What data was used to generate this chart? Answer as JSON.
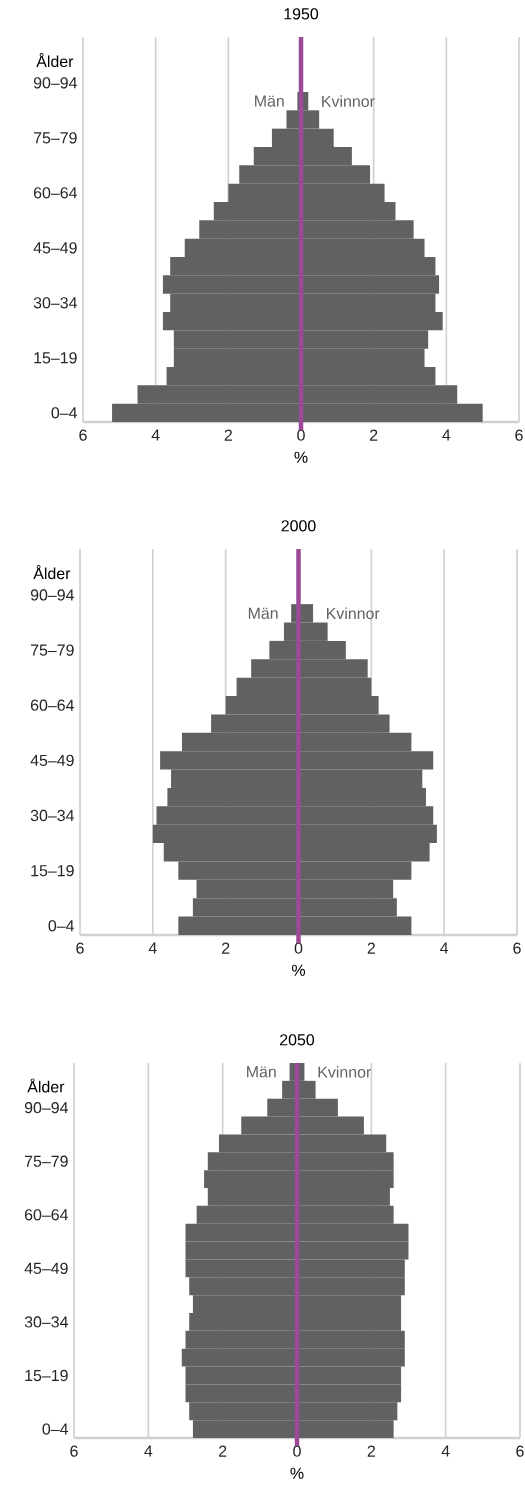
{
  "chart_data": [
    {
      "type": "bar",
      "orientation": "horizontal",
      "stacked": true,
      "title": "1950",
      "xlabel": "%",
      "ylabel": "Ålder",
      "categories": [
        null,
        null,
        "90–94",
        null,
        null,
        "75–79",
        null,
        null,
        "60–64",
        null,
        null,
        "45–49",
        null,
        null,
        "30–34",
        null,
        null,
        "15–19",
        null,
        null,
        "0–4"
      ],
      "series": [
        {
          "name": "Män",
          "color": "#616164",
          "values": [
            0,
            0,
            0,
            -0.1,
            -0.4,
            -0.8,
            -1.3,
            -1.7,
            -2.0,
            -2.4,
            -2.8,
            -3.2,
            -3.6,
            -3.8,
            -3.6,
            -3.8,
            -3.5,
            -3.5,
            -3.7,
            -4.5,
            -5.2
          ]
        },
        {
          "name": "Kvinnor",
          "color": "#616164",
          "values": [
            0,
            0,
            0,
            0.2,
            0.5,
            0.9,
            1.4,
            1.9,
            2.3,
            2.6,
            3.1,
            3.4,
            3.7,
            3.8,
            3.7,
            3.9,
            3.5,
            3.4,
            3.7,
            4.3,
            5.0
          ]
        }
      ],
      "xlim": [
        -6,
        6
      ],
      "xticks": [
        {
          "value": -6,
          "label": "6"
        },
        {
          "value": -4,
          "label": "4"
        },
        {
          "value": -2,
          "label": "2"
        },
        0,
        2,
        4,
        6
      ],
      "grid": "x",
      "ref_lines": [
        {
          "axis": "x",
          "value": 0,
          "color": "#9c4a97"
        }
      ]
    },
    {
      "type": "bar",
      "orientation": "horizontal",
      "stacked": true,
      "title": "2000",
      "xlabel": "%",
      "ylabel": "Ålder",
      "categories": [
        null,
        null,
        "90–94",
        null,
        null,
        "75–79",
        null,
        null,
        "60–64",
        null,
        null,
        "45–49",
        null,
        null,
        "30–34",
        null,
        null,
        "15–19",
        null,
        null,
        "0–4"
      ],
      "series": [
        {
          "name": "Män",
          "color": "#616164",
          "values": [
            0,
            0,
            0,
            -0.2,
            -0.4,
            -0.8,
            -1.3,
            -1.7,
            -2.0,
            -2.4,
            -3.2,
            -3.8,
            -3.5,
            -3.6,
            -3.9,
            -4.0,
            -3.7,
            -3.3,
            -2.8,
            -2.9,
            -3.3
          ]
        },
        {
          "name": "Kvinnor",
          "color": "#616164",
          "values": [
            0,
            0,
            0,
            0.4,
            0.8,
            1.3,
            1.9,
            2.0,
            2.2,
            2.5,
            3.1,
            3.7,
            3.4,
            3.5,
            3.7,
            3.8,
            3.6,
            3.1,
            2.6,
            2.7,
            3.1
          ]
        }
      ],
      "xlim": [
        -6,
        6
      ],
      "xticks": [
        {
          "value": -6,
          "label": "6"
        },
        {
          "value": -4,
          "label": "4"
        },
        {
          "value": -2,
          "label": "2"
        },
        0,
        2,
        4,
        6
      ],
      "grid": "x",
      "ref_lines": [
        {
          "axis": "x",
          "value": 0,
          "color": "#9c4a97"
        }
      ]
    },
    {
      "type": "bar",
      "orientation": "horizontal",
      "stacked": true,
      "title": "2050",
      "xlabel": "%",
      "ylabel": "Ålder",
      "categories": [
        null,
        null,
        "90–94",
        null,
        null,
        "75–79",
        null,
        null,
        "60–64",
        null,
        null,
        "45–49",
        null,
        null,
        "30–34",
        null,
        null,
        "15–19",
        null,
        null,
        "0–4"
      ],
      "series": [
        {
          "name": "Män",
          "color": "#616164",
          "values": [
            -0.2,
            -0.4,
            -0.8,
            -1.5,
            -2.1,
            -2.4,
            -2.5,
            -2.4,
            -2.7,
            -3.0,
            -3.0,
            -3.0,
            -2.9,
            -2.8,
            -2.9,
            -3.0,
            -3.1,
            -3.0,
            -3.0,
            -2.9,
            -2.8
          ]
        },
        {
          "name": "Kvinnor",
          "color": "#616164",
          "values": [
            0.2,
            0.5,
            1.1,
            1.8,
            2.4,
            2.6,
            2.6,
            2.5,
            2.6,
            3.0,
            3.0,
            2.9,
            2.9,
            2.8,
            2.8,
            2.9,
            2.9,
            2.8,
            2.8,
            2.7,
            2.6
          ]
        }
      ],
      "xlim": [
        -6,
        6
      ],
      "xticks": [
        {
          "value": -6,
          "label": "6"
        },
        {
          "value": -4,
          "label": "4"
        },
        {
          "value": -2,
          "label": "2"
        },
        0,
        2,
        4,
        6
      ],
      "grid": "x",
      "ref_lines": [
        {
          "axis": "x",
          "value": 0,
          "color": "#9c4a97"
        }
      ]
    }
  ]
}
